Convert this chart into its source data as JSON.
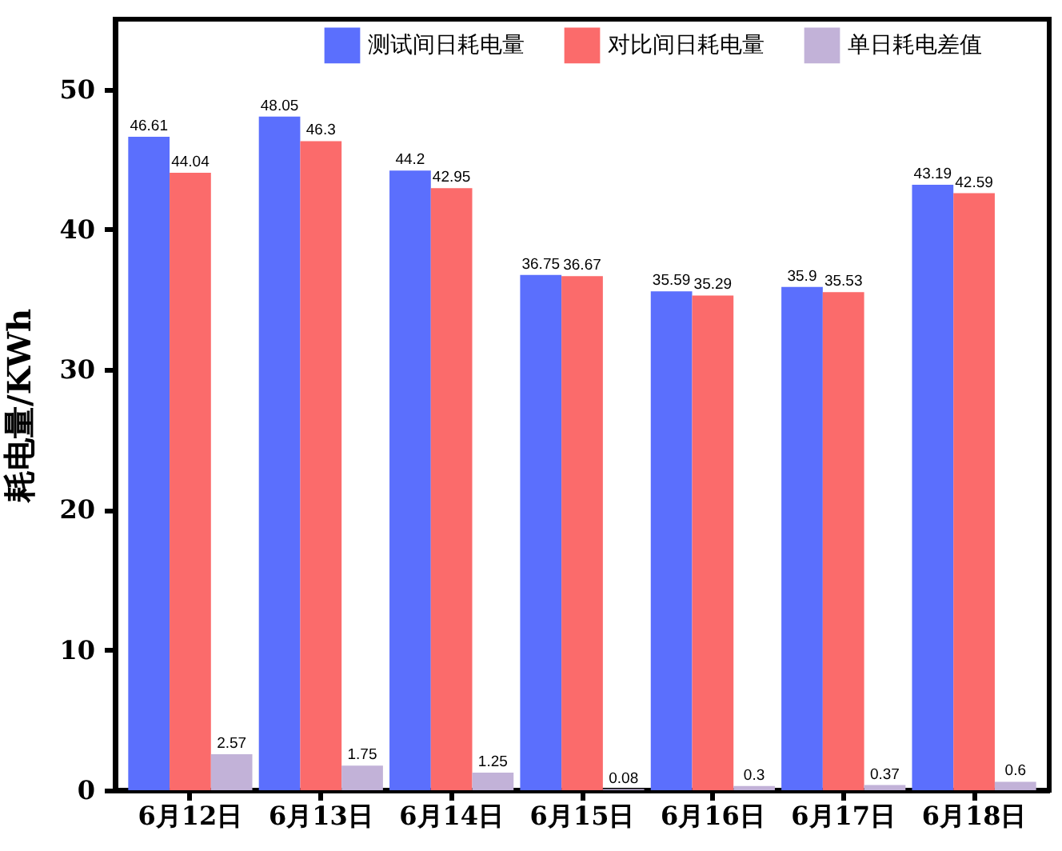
{
  "chart_data": {
    "type": "bar",
    "ylabel": "耗电量/KWh",
    "categories": [
      "6月12日",
      "6月13日",
      "6月14日",
      "6月15日",
      "6月16日",
      "6月17日",
      "6月18日"
    ],
    "series": [
      {
        "name": "测试间日耗电量",
        "color": "#5b6ffd",
        "values": [
          46.61,
          48.05,
          44.2,
          36.75,
          35.59,
          35.9,
          43.19
        ]
      },
      {
        "name": "对比间日耗电量",
        "color": "#fb6b6b",
        "values": [
          44.04,
          46.3,
          42.95,
          36.67,
          35.29,
          35.53,
          42.59
        ]
      },
      {
        "name": "单日耗电差值",
        "color": "#c2b2d8",
        "values": [
          2.57,
          1.75,
          1.25,
          0.08,
          0.3,
          0.37,
          0.6
        ]
      }
    ],
    "ylim": [
      0,
      55
    ],
    "yticks": [
      0,
      10,
      20,
      30,
      40,
      50
    ],
    "grid": false,
    "legend": "top",
    "data_labels": true
  }
}
